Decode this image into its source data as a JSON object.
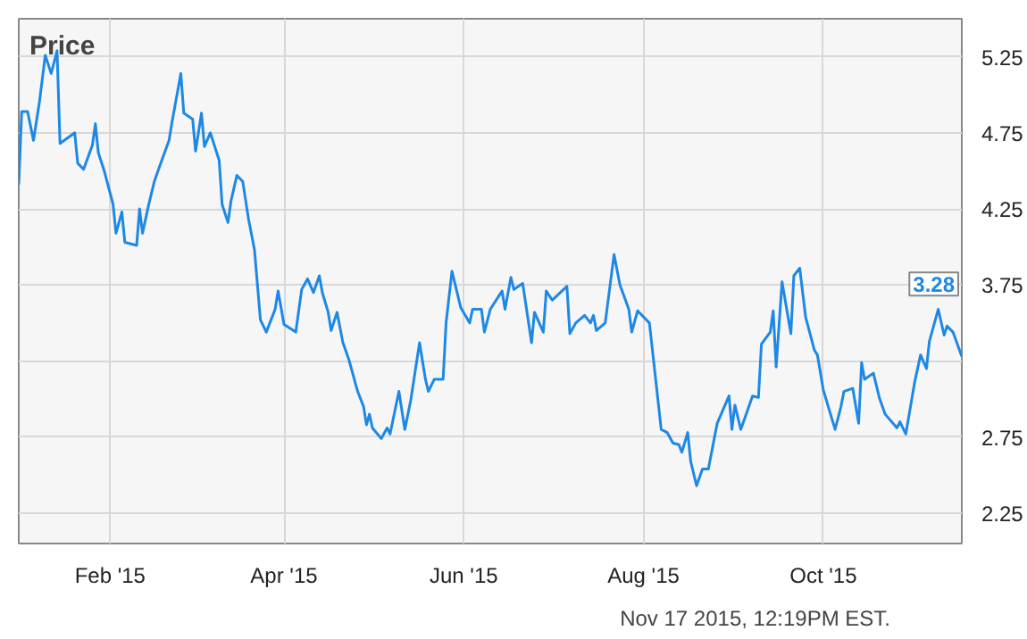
{
  "chart_data": {
    "type": "line",
    "title": "Price",
    "x": [
      "2015-01-01",
      "2015-01-02",
      "2015-01-04",
      "2015-01-06",
      "2015-01-08",
      "2015-01-10",
      "2015-01-12",
      "2015-01-14",
      "2015-01-15",
      "2015-01-20",
      "2015-01-21",
      "2015-01-23",
      "2015-01-26",
      "2015-01-27",
      "2015-01-28",
      "2015-01-30",
      "2015-02-02",
      "2015-02-03",
      "2015-02-05",
      "2015-02-06",
      "2015-02-10",
      "2015-02-11",
      "2015-02-12",
      "2015-02-14",
      "2015-02-16",
      "2015-02-18",
      "2015-02-21",
      "2015-02-22",
      "2015-02-25",
      "2015-02-26",
      "2015-03-01",
      "2015-03-02",
      "2015-03-04",
      "2015-03-05",
      "2015-03-07",
      "2015-03-10",
      "2015-03-11",
      "2015-03-13",
      "2015-03-14",
      "2015-03-16",
      "2015-03-18",
      "2015-03-20",
      "2015-03-22",
      "2015-03-24",
      "2015-03-26",
      "2015-03-29",
      "2015-03-30",
      "2015-04-01",
      "2015-04-05",
      "2015-04-07",
      "2015-04-09",
      "2015-04-11",
      "2015-04-13",
      "2015-04-14",
      "2015-04-16",
      "2015-04-17",
      "2015-04-19",
      "2015-04-21",
      "2015-04-23",
      "2015-04-26",
      "2015-04-28",
      "2015-04-29",
      "2015-04-30",
      "2015-05-01",
      "2015-05-04",
      "2015-05-06",
      "2015-05-07",
      "2015-05-10",
      "2015-05-12",
      "2015-05-14",
      "2015-05-17",
      "2015-05-19",
      "2015-05-20",
      "2015-05-22",
      "2015-05-25",
      "2015-05-26",
      "2015-05-28",
      "2015-05-31",
      "2015-06-03",
      "2015-06-04",
      "2015-06-07",
      "2015-06-08",
      "2015-06-10",
      "2015-06-14",
      "2015-06-15",
      "2015-06-17",
      "2015-06-18",
      "2015-06-21",
      "2015-06-24",
      "2015-06-25",
      "2015-06-28",
      "2015-06-29",
      "2015-07-01",
      "2015-07-06",
      "2015-07-07",
      "2015-07-09",
      "2015-07-12",
      "2015-07-14",
      "2015-07-15",
      "2015-07-16",
      "2015-07-19",
      "2015-07-22",
      "2015-07-24",
      "2015-07-27",
      "2015-07-28",
      "2015-07-30",
      "2015-08-03",
      "2015-08-07",
      "2015-08-09",
      "2015-08-11",
      "2015-08-13",
      "2015-08-14",
      "2015-08-16",
      "2015-08-17",
      "2015-08-19",
      "2015-08-21",
      "2015-08-23",
      "2015-08-26",
      "2015-08-30",
      "2015-08-31",
      "2015-09-01",
      "2015-09-03",
      "2015-09-07",
      "2015-09-09",
      "2015-09-10",
      "2015-09-13",
      "2015-09-14",
      "2015-09-15",
      "2015-09-17",
      "2015-09-20",
      "2015-09-21",
      "2015-09-23",
      "2015-09-25",
      "2015-09-28",
      "2015-09-29",
      "2015-10-01",
      "2015-10-05",
      "2015-10-07",
      "2015-10-08",
      "2015-10-11",
      "2015-10-13",
      "2015-10-14",
      "2015-10-15",
      "2015-10-18",
      "2015-10-20",
      "2015-10-22",
      "2015-10-26",
      "2015-10-27",
      "2015-10-29",
      "2015-11-01",
      "2015-11-03",
      "2015-11-05",
      "2015-11-06",
      "2015-11-09",
      "2015-11-11",
      "2015-11-12",
      "2015-11-14",
      "2015-11-17"
    ],
    "series": [
      {
        "color": "#1e88e5",
        "values": [
          4.41,
          4.89,
          4.89,
          4.7,
          4.95,
          5.26,
          5.14,
          5.29,
          4.68,
          4.75,
          4.55,
          4.51,
          4.67,
          4.81,
          4.62,
          4.5,
          4.28,
          4.09,
          4.23,
          4.03,
          4.01,
          4.25,
          4.09,
          4.27,
          4.43,
          4.54,
          4.7,
          4.82,
          5.14,
          4.88,
          4.84,
          4.63,
          4.88,
          4.66,
          4.75,
          4.57,
          4.28,
          4.16,
          4.3,
          4.47,
          4.43,
          4.18,
          3.98,
          3.52,
          3.44,
          3.59,
          3.71,
          3.49,
          3.44,
          3.72,
          3.79,
          3.7,
          3.81,
          3.7,
          3.57,
          3.45,
          3.57,
          3.37,
          3.26,
          3.05,
          2.95,
          2.83,
          2.9,
          2.81,
          2.74,
          2.81,
          2.77,
          3.05,
          2.8,
          2.99,
          3.37,
          3.13,
          3.05,
          3.13,
          3.13,
          3.5,
          3.84,
          3.6,
          3.5,
          3.59,
          3.59,
          3.44,
          3.59,
          3.71,
          3.59,
          3.8,
          3.72,
          3.76,
          3.37,
          3.57,
          3.44,
          3.71,
          3.65,
          3.74,
          3.43,
          3.5,
          3.55,
          3.5,
          3.55,
          3.45,
          3.5,
          3.95,
          3.75,
          3.59,
          3.44,
          3.58,
          3.5,
          2.8,
          2.78,
          2.71,
          2.7,
          2.65,
          2.78,
          2.59,
          2.43,
          2.54,
          2.54,
          2.84,
          3.02,
          2.8,
          2.96,
          2.8,
          3.02,
          3.01,
          3.36,
          3.44,
          3.58,
          3.21,
          3.77,
          3.43,
          3.81,
          3.86,
          3.54,
          3.32,
          3.29,
          3.06,
          2.8,
          2.95,
          3.05,
          3.07,
          2.84,
          3.24,
          3.13,
          3.17,
          3.01,
          2.9,
          2.81,
          2.85,
          2.77,
          3.11,
          3.29,
          3.2,
          3.38,
          3.59,
          3.42,
          3.48,
          3.44,
          3.28
        ]
      }
    ],
    "xlim": [
      "2015-01-01",
      "2015-11-17"
    ],
    "xticks": [
      {
        "value": "2015-02-01",
        "label": "Feb '15"
      },
      {
        "value": "2015-04-01",
        "label": "Apr '15"
      },
      {
        "value": "2015-06-01",
        "label": "Jun '15"
      },
      {
        "value": "2015-08-01",
        "label": "Aug '15"
      },
      {
        "value": "2015-10-01",
        "label": "Oct '15"
      }
    ],
    "ylim": [
      2.05,
      5.5
    ],
    "yticks": [
      {
        "value": 2.25,
        "label": "2.25"
      },
      {
        "value": 2.75,
        "label": "2.75"
      },
      {
        "value": 3.25,
        "label": null
      },
      {
        "value": 3.75,
        "label": "3.75"
      },
      {
        "value": 4.25,
        "label": "4.25"
      },
      {
        "value": 4.75,
        "label": "4.75"
      },
      {
        "value": 5.25,
        "label": "5.25"
      }
    ],
    "grid": true,
    "annotations": [
      {
        "text": "3.28",
        "x": "2015-11-17",
        "y": 3.28
      },
      "Nov 17 2015, 12:19PM EST."
    ]
  }
}
